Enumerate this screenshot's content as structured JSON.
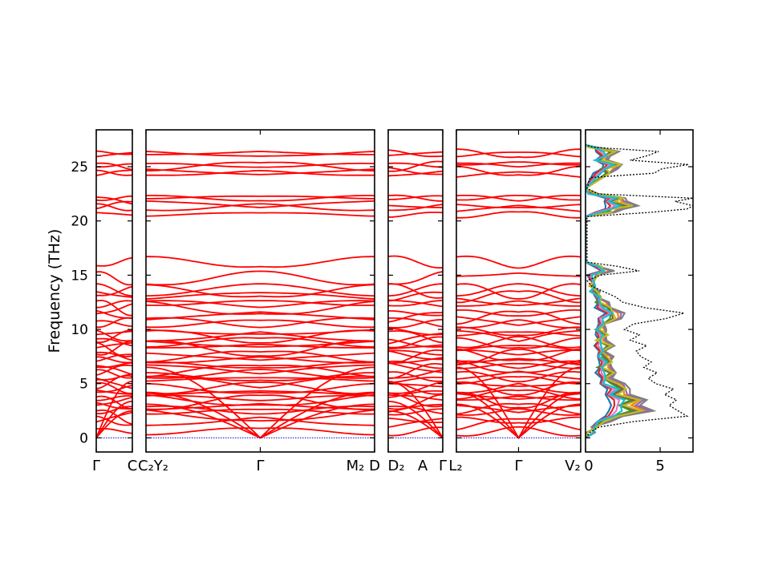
{
  "chart_data": {
    "type": "line",
    "ylabel": "Frequency (THz)",
    "ylim": [
      -1.3,
      28.4
    ],
    "y_ticks": [
      "0",
      "5",
      "10",
      "15",
      "20",
      "25"
    ],
    "y_tick_values": [
      0,
      5,
      10,
      15,
      20,
      25
    ],
    "band_color": "#ff0000",
    "zero_line_color": "#0000cc",
    "panels": [
      {
        "id": "p1",
        "start_label": "Γ",
        "end_label": "C",
        "gamma_at": "start"
      },
      {
        "id": "p2",
        "start_label": "C₂Y₂",
        "mid_label": "Γ",
        "end_label": "M₂",
        "gamma_at": "mid"
      },
      {
        "id": "p3",
        "start_label": "D",
        "start_label2": "D₂",
        "mid_label": "A",
        "end_label": "Γ",
        "gamma_at": "end"
      },
      {
        "id": "p4",
        "start_label": "L₂",
        "mid_label": "Γ",
        "end_label": "V₂",
        "gamma_at": "mid"
      }
    ],
    "band_frequencies_at_gamma": [
      0,
      0,
      0,
      0.9,
      1.4,
      1.9,
      2.3,
      2.6,
      2.9,
      3.2,
      3.5,
      3.8,
      4.1,
      4.4,
      4.7,
      5.0,
      5.3,
      5.6,
      5.9,
      6.2,
      6.5,
      6.8,
      7.1,
      7.4,
      7.7,
      8.0,
      8.3,
      8.6,
      8.9,
      9.2,
      9.5,
      9.8,
      10.3,
      10.8,
      11.3,
      11.7,
      12.1,
      12.6,
      13.0,
      13.5,
      14.2,
      15.2,
      15.8,
      20.8,
      21.2,
      21.5,
      21.9,
      22.3,
      24.2,
      24.6,
      25.0,
      25.4,
      25.9,
      26.4
    ],
    "dos": {
      "xlim": [
        0,
        7.2
      ],
      "x_ticks": [
        "0",
        "5"
      ],
      "x_tick_values": [
        0,
        5
      ],
      "total_color": "#000000",
      "projection_colors": [
        "#1f77b4",
        "#ff7f0e",
        "#2ca02c",
        "#d62728",
        "#9467bd",
        "#8c564b",
        "#e377c2",
        "#7f7f7f",
        "#bcbd22",
        "#17becf"
      ],
      "total": [
        [
          0,
          0
        ],
        [
          0.5,
          0.3
        ],
        [
          1.0,
          0.9
        ],
        [
          1.5,
          3.2
        ],
        [
          2.0,
          6.8
        ],
        [
          2.5,
          6.2
        ],
        [
          3.0,
          5.6
        ],
        [
          3.5,
          6.1
        ],
        [
          4.0,
          5.3
        ],
        [
          4.5,
          5.9
        ],
        [
          5.0,
          4.7
        ],
        [
          5.5,
          4.2
        ],
        [
          6.0,
          4.8
        ],
        [
          6.5,
          3.9
        ],
        [
          7.0,
          4.4
        ],
        [
          7.5,
          3.7
        ],
        [
          8.0,
          3.4
        ],
        [
          8.5,
          4.1
        ],
        [
          9.0,
          3.0
        ],
        [
          9.5,
          3.6
        ],
        [
          10.0,
          2.6
        ],
        [
          10.5,
          3.2
        ],
        [
          11.0,
          5.4
        ],
        [
          11.5,
          6.6
        ],
        [
          12.0,
          4.0
        ],
        [
          12.5,
          2.5
        ],
        [
          13.0,
          2.0
        ],
        [
          13.5,
          1.2
        ],
        [
          14.0,
          0.4
        ],
        [
          14.5,
          0.1
        ],
        [
          15.0,
          1.0
        ],
        [
          15.4,
          3.6
        ],
        [
          15.8,
          2.2
        ],
        [
          16.2,
          0.1
        ],
        [
          20.4,
          0.1
        ],
        [
          20.8,
          4.4
        ],
        [
          21.1,
          6.8
        ],
        [
          21.4,
          7.2
        ],
        [
          21.8,
          6.0
        ],
        [
          22.1,
          7.2
        ],
        [
          22.5,
          0.8
        ],
        [
          23.0,
          0.1
        ],
        [
          24.0,
          0.3
        ],
        [
          24.4,
          4.6
        ],
        [
          24.8,
          5.1
        ],
        [
          25.2,
          6.9
        ],
        [
          25.6,
          3.0
        ],
        [
          26.0,
          4.1
        ],
        [
          26.4,
          4.9
        ],
        [
          26.8,
          0.5
        ],
        [
          27.0,
          0
        ]
      ],
      "projection": [
        [
          0,
          0
        ],
        [
          0.5,
          0.1
        ],
        [
          1.0,
          0.3
        ],
        [
          1.5,
          1.1
        ],
        [
          2.0,
          2.3
        ],
        [
          2.5,
          4.1
        ],
        [
          3.0,
          3.2
        ],
        [
          3.5,
          3.9
        ],
        [
          4.0,
          2.4
        ],
        [
          4.5,
          2.9
        ],
        [
          5.0,
          2.1
        ],
        [
          5.5,
          1.4
        ],
        [
          6.0,
          1.7
        ],
        [
          6.5,
          1.2
        ],
        [
          7.0,
          1.6
        ],
        [
          7.5,
          1.3
        ],
        [
          8.0,
          1.0
        ],
        [
          8.5,
          1.5
        ],
        [
          9.0,
          0.9
        ],
        [
          9.5,
          1.2
        ],
        [
          10.0,
          0.8
        ],
        [
          10.5,
          1.1
        ],
        [
          11.0,
          1.9
        ],
        [
          11.5,
          2.2
        ],
        [
          12.0,
          1.4
        ],
        [
          12.5,
          1.0
        ],
        [
          13.0,
          0.7
        ],
        [
          13.5,
          0.4
        ],
        [
          14.0,
          0.1
        ],
        [
          15.0,
          0.3
        ],
        [
          15.4,
          1.4
        ],
        [
          15.8,
          0.7
        ],
        [
          16.2,
          0
        ],
        [
          20.4,
          0
        ],
        [
          20.8,
          1.5
        ],
        [
          21.1,
          2.1
        ],
        [
          21.4,
          3.3
        ],
        [
          21.8,
          2.2
        ],
        [
          22.1,
          2.6
        ],
        [
          22.5,
          0.3
        ],
        [
          23.0,
          0
        ],
        [
          24.4,
          1.3
        ],
        [
          24.8,
          1.6
        ],
        [
          25.2,
          2.4
        ],
        [
          25.6,
          0.9
        ],
        [
          26.0,
          1.4
        ],
        [
          26.4,
          1.8
        ],
        [
          26.8,
          0.2
        ],
        [
          27.0,
          0
        ]
      ]
    }
  }
}
